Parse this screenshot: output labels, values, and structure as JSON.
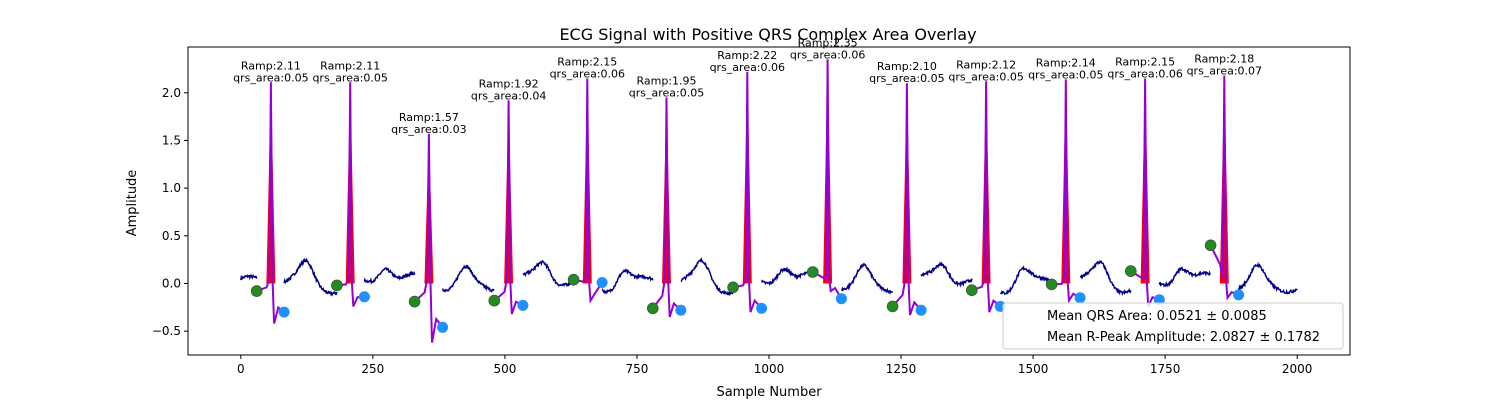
{
  "chart_data": {
    "type": "line",
    "title": "ECG Signal with Positive QRS Complex Area Overlay",
    "xlabel": "Sample Number",
    "ylabel": "Amplitude",
    "xlim": [
      -100,
      2100
    ],
    "ylim": [
      -0.75,
      2.48
    ],
    "xticks": [
      0,
      250,
      500,
      750,
      1000,
      1250,
      1500,
      1750,
      2000
    ],
    "yticks": [
      -0.5,
      0.0,
      0.5,
      1.0,
      1.5,
      2.0
    ],
    "xtick_labels": [
      "0",
      "250",
      "500",
      "750",
      "1000",
      "1250",
      "1500",
      "1750",
      "2000"
    ],
    "ytick_labels": [
      "−0.5",
      "0.0",
      "0.5",
      "1.0",
      "1.5",
      "2.0"
    ],
    "grid": false,
    "legend_position": "bottom-right",
    "legend": [
      {
        "label": "Mean QRS Area: 0.0521 ± 0.0085"
      },
      {
        "label": "Mean R-Peak Amplitude: 2.0827 ± 0.1782"
      }
    ],
    "colors": {
      "signal": "#00008b",
      "qrs_segment": "#9400d3",
      "qrs_area_fill": "#ff0000",
      "qrs_onset_marker": "#228b22",
      "qrs_offset_marker": "#1e90ff"
    },
    "beats": [
      {
        "r_x": 57,
        "r_amp": 2.11,
        "ramp_text": "Ramp:2.11",
        "area_text": "qrs_area:0.05",
        "onset_x": 30,
        "onset_y": -0.08,
        "offset_x": 82,
        "offset_y": -0.3,
        "end_y": -0.42
      },
      {
        "r_x": 207,
        "r_amp": 2.11,
        "ramp_text": "Ramp:2.11",
        "area_text": "qrs_area:0.05",
        "onset_x": 182,
        "onset_y": -0.02,
        "offset_x": 234,
        "offset_y": -0.14,
        "end_y": -0.24
      },
      {
        "r_x": 356,
        "r_amp": 1.57,
        "ramp_text": "Ramp:1.57",
        "area_text": "qrs_area:0.03",
        "onset_x": 329,
        "onset_y": -0.19,
        "offset_x": 382,
        "offset_y": -0.46,
        "end_y": -0.62
      },
      {
        "r_x": 507,
        "r_amp": 1.92,
        "ramp_text": "Ramp:1.92",
        "area_text": "qrs_area:0.04",
        "onset_x": 480,
        "onset_y": -0.18,
        "offset_x": 534,
        "offset_y": -0.23,
        "end_y": -0.32
      },
      {
        "r_x": 656,
        "r_amp": 2.15,
        "ramp_text": "Ramp:2.15",
        "area_text": "qrs_area:0.06",
        "onset_x": 630,
        "onset_y": 0.04,
        "offset_x": 684,
        "offset_y": 0.01,
        "end_y": -0.18
      },
      {
        "r_x": 806,
        "r_amp": 1.95,
        "ramp_text": "Ramp:1.95",
        "area_text": "qrs_area:0.05",
        "onset_x": 780,
        "onset_y": -0.26,
        "offset_x": 833,
        "offset_y": -0.28,
        "end_y": -0.35
      },
      {
        "r_x": 959,
        "r_amp": 2.22,
        "ramp_text": "Ramp:2.22",
        "area_text": "qrs_area:0.06",
        "onset_x": 932,
        "onset_y": -0.04,
        "offset_x": 986,
        "offset_y": -0.26,
        "end_y": -0.3
      },
      {
        "r_x": 1111,
        "r_amp": 2.35,
        "ramp_text": "Ramp:2.35",
        "area_text": "qrs_area:0.06",
        "onset_x": 1083,
        "onset_y": 0.12,
        "offset_x": 1137,
        "offset_y": -0.16,
        "end_y": -0.08
      },
      {
        "r_x": 1261,
        "r_amp": 2.1,
        "ramp_text": "Ramp:2.10",
        "area_text": "qrs_area:0.05",
        "onset_x": 1234,
        "onset_y": -0.24,
        "offset_x": 1288,
        "offset_y": -0.28,
        "end_y": -0.33
      },
      {
        "r_x": 1411,
        "r_amp": 2.12,
        "ramp_text": "Ramp:2.12",
        "area_text": "qrs_area:0.05",
        "onset_x": 1384,
        "onset_y": -0.07,
        "offset_x": 1438,
        "offset_y": -0.24,
        "end_y": -0.3
      },
      {
        "r_x": 1562,
        "r_amp": 2.14,
        "ramp_text": "Ramp:2.14",
        "area_text": "qrs_area:0.05",
        "onset_x": 1535,
        "onset_y": -0.01,
        "offset_x": 1589,
        "offset_y": -0.15,
        "end_y": -0.18
      },
      {
        "r_x": 1712,
        "r_amp": 2.15,
        "ramp_text": "Ramp:2.15",
        "area_text": "qrs_area:0.06",
        "onset_x": 1685,
        "onset_y": 0.13,
        "offset_x": 1739,
        "offset_y": -0.17,
        "end_y": -0.24
      },
      {
        "r_x": 1862,
        "r_amp": 2.18,
        "ramp_text": "Ramp:2.18",
        "area_text": "qrs_area:0.07",
        "onset_x": 1836,
        "onset_y": 0.4,
        "offset_x": 1889,
        "offset_y": -0.12,
        "end_y": -0.15
      }
    ]
  }
}
